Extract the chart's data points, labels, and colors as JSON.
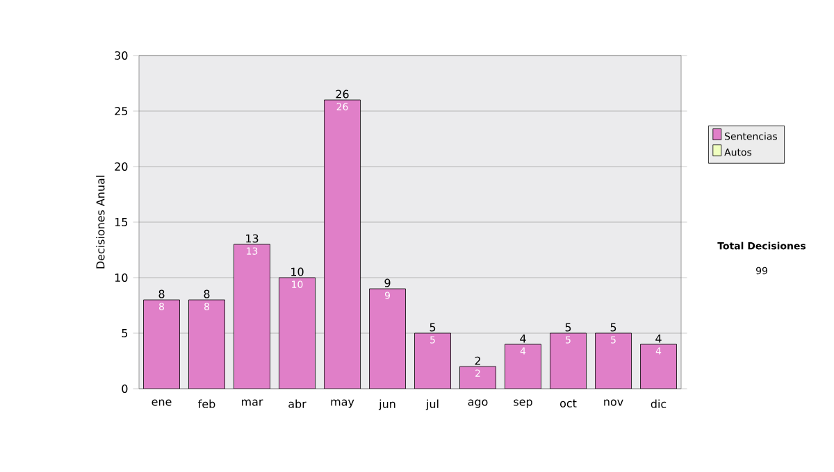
{
  "chart_data": {
    "type": "bar",
    "ylabel": "Decisiones Anual",
    "categories": [
      "ene",
      "feb",
      "mar",
      "abr",
      "may",
      "jun",
      "jul",
      "ago",
      "sep",
      "oct",
      "nov",
      "dic"
    ],
    "series": [
      {
        "name": "Sentencias",
        "color": "#e07fc8",
        "values": [
          8,
          8,
          13,
          10,
          26,
          9,
          5,
          2,
          4,
          5,
          5,
          4
        ],
        "value_labels": [
          "8",
          "8",
          "13",
          "10",
          "26",
          "9",
          "5",
          "2",
          "4",
          "5",
          "5",
          "4"
        ]
      },
      {
        "name": "Autos",
        "color": "#f0ffc0",
        "values": [
          0,
          0,
          0,
          0,
          0,
          0,
          0,
          0,
          0,
          0,
          0,
          0
        ]
      }
    ],
    "stacked": true,
    "totals": [
      "8",
      "8",
      "13",
      "10",
      "26",
      "9",
      "5",
      "2",
      "4",
      "5",
      "5",
      "4"
    ],
    "ylim": [
      0,
      30
    ],
    "yticks": [
      0,
      5,
      10,
      15,
      20,
      25,
      30
    ],
    "grid": "y",
    "legend": "right",
    "annotations": [
      "Total Decisiones",
      "99"
    ]
  }
}
